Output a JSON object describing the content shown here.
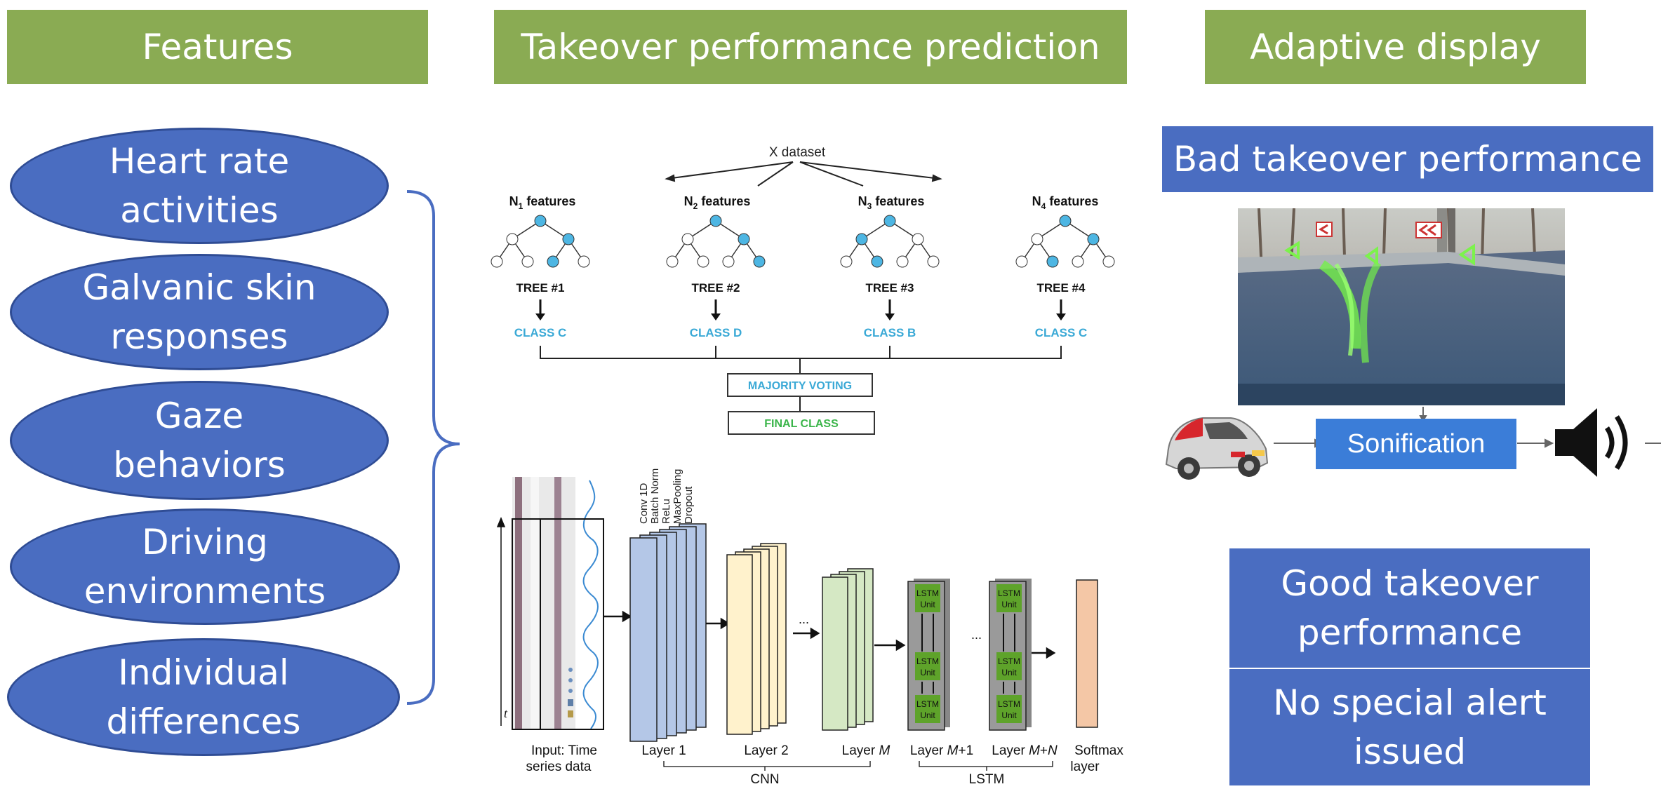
{
  "headers": {
    "features": "Features",
    "prediction": "Takeover performance prediction",
    "adaptive": "Adaptive display"
  },
  "features_list": [
    {
      "line1": "Heart rate",
      "line2": "activities"
    },
    {
      "line1": "Galvanic skin",
      "line2": "responses"
    },
    {
      "line1": "Gaze",
      "line2": "behaviors"
    },
    {
      "line1": "Driving",
      "line2": "environments"
    },
    {
      "line1": "Individual",
      "line2": "differences"
    }
  ],
  "random_forest": {
    "dataset": "X dataset",
    "features": [
      {
        "n": "N",
        "sub": "1",
        "suffix": " features"
      },
      {
        "n": "N",
        "sub": "2",
        "suffix": " features"
      },
      {
        "n": "N",
        "sub": "3",
        "suffix": " features"
      },
      {
        "n": "N",
        "sub": "4",
        "suffix": " features"
      }
    ],
    "trees": [
      "TREE #1",
      "TREE #2",
      "TREE #3",
      "TREE #4"
    ],
    "classes": [
      "CLASS C",
      "CLASS D",
      "CLASS B",
      "CLASS C"
    ],
    "voting": "MAJORITY VOTING",
    "final": "FINAL CLASS"
  },
  "cnn_lstm": {
    "conv_labels": [
      "Conv 1D",
      "Batch Norm",
      "ReLu",
      "MaxPooling",
      "Dropout"
    ],
    "input_label_1": "Input: Time",
    "input_label_2": "series data",
    "axis_t": "t",
    "layer1": "Layer 1",
    "layer2": "Layer 2",
    "layerM_prefix": "Layer ",
    "layerM_var": "M",
    "layerM1_var": "M",
    "layerM1_suffix": "+1",
    "layerMN_var": "M",
    "layerMN_plus": "+",
    "layerMN_n": "N",
    "softmax_1": "Softmax",
    "softmax_2": "layer",
    "cnn": "CNN",
    "lstm": "LSTM",
    "lstm_unit_1": "LSTM",
    "lstm_unit_2": "Unit",
    "dots": "..."
  },
  "adaptive": {
    "bad": "Bad takeover performance",
    "sonification": "Sonification",
    "good_1": "Good takeover",
    "good_2": "performance",
    "alert_1": "No special alert",
    "alert_2": "issued"
  },
  "colors": {
    "header_green": "#8aab53",
    "blue": "#4a6dc1",
    "cyan_text": "#3aa9d6",
    "green_text": "#3bb54a",
    "node_blue": "#4db6e3",
    "layer_blue": "#b4c7e7",
    "layer_yellow": "#fff2cc",
    "layer_green": "#d5e8c4",
    "softmax": "#f4c7a6",
    "sonification_blue": "#3b7dd8"
  }
}
